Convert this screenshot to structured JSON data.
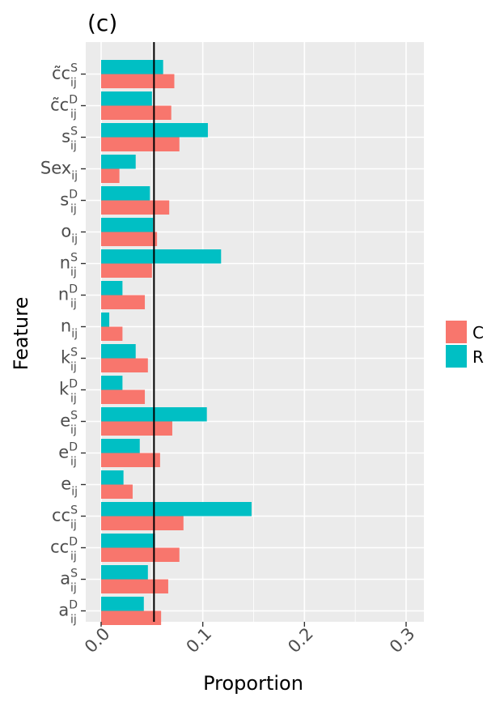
{
  "panel_label": "(c)",
  "colors": {
    "C": "#F8766D",
    "R": "#00BFC4",
    "panel_bg": "#EBEBEB",
    "grid": "#FFFFFF",
    "ref_line": "#000000"
  },
  "chart_data": {
    "type": "bar",
    "orientation": "horizontal",
    "title": "(c)",
    "xlabel": "Proportion",
    "ylabel": "Feature",
    "xlim": [
      0,
      0.3
    ],
    "x_ticks": [
      0.0,
      0.1,
      0.2,
      0.3
    ],
    "x_tick_labels": [
      "0.0",
      "0.1",
      "0.2",
      "0.3"
    ],
    "reference_line_x": 0.052,
    "legend": [
      "C",
      "R"
    ],
    "legend_position": "right",
    "categories": [
      {
        "base": "c̃c",
        "sup": "S",
        "sub": "ij"
      },
      {
        "base": "c̃c",
        "sup": "D",
        "sub": "ij"
      },
      {
        "base": "s",
        "sup": "S",
        "sub": "ij"
      },
      {
        "base": "Sex",
        "sup": "",
        "sub": "ij"
      },
      {
        "base": "s",
        "sup": "D",
        "sub": "ij"
      },
      {
        "base": "o",
        "sup": "",
        "sub": "ij"
      },
      {
        "base": "n",
        "sup": "S",
        "sub": "ij"
      },
      {
        "base": "n",
        "sup": "D",
        "sub": "ij"
      },
      {
        "base": "n",
        "sup": "",
        "sub": "ij"
      },
      {
        "base": "k",
        "sup": "S",
        "sub": "ij"
      },
      {
        "base": "k",
        "sup": "D",
        "sub": "ij"
      },
      {
        "base": "e",
        "sup": "S",
        "sub": "ij"
      },
      {
        "base": "e",
        "sup": "D",
        "sub": "ij"
      },
      {
        "base": "e",
        "sup": "",
        "sub": "ij"
      },
      {
        "base": "cc",
        "sup": "S",
        "sub": "ij"
      },
      {
        "base": "cc",
        "sup": "D",
        "sub": "ij"
      },
      {
        "base": "a",
        "sup": "S",
        "sub": "ij"
      },
      {
        "base": "a",
        "sup": "D",
        "sub": "ij"
      }
    ],
    "series": [
      {
        "name": "R",
        "values": [
          0.061,
          0.05,
          0.105,
          0.034,
          0.048,
          0.051,
          0.118,
          0.021,
          0.008,
          0.034,
          0.021,
          0.104,
          0.038,
          0.022,
          0.148,
          0.053,
          0.046,
          0.042
        ]
      },
      {
        "name": "C",
        "values": [
          0.072,
          0.069,
          0.077,
          0.018,
          0.067,
          0.055,
          0.05,
          0.043,
          0.021,
          0.046,
          0.043,
          0.07,
          0.058,
          0.031,
          0.081,
          0.077,
          0.066,
          0.059
        ]
      }
    ]
  }
}
